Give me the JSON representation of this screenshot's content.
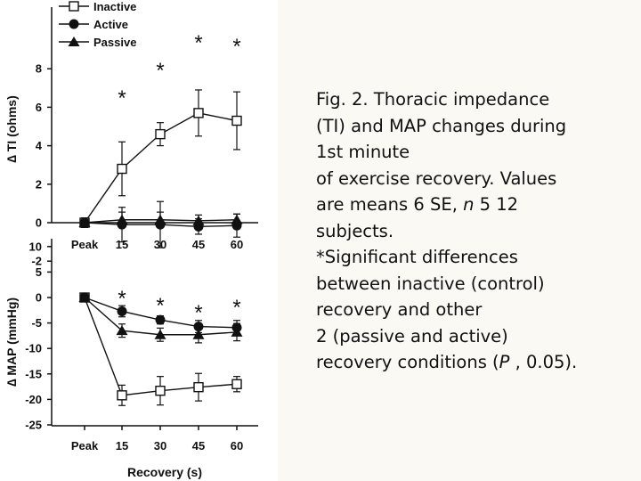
{
  "caption": {
    "lines": [
      "Fig. 2. Thoracic impedance",
      "(TI) and MAP changes during",
      "1st minute",
      "of exercise recovery. Values",
      "are means 6 SE, ",
      "subjects.",
      "*Significant differences",
      "between inactive (control)",
      "recovery and other",
      "2 (passive and active)",
      "recovery conditions ("
    ],
    "n_symbol": "n",
    "n_value": " 5 12",
    "p_symbol": "P",
    "p_value": " , 0.05)."
  },
  "chart_data": [
    {
      "type": "line",
      "categories": [
        "Peak",
        "15",
        "30",
        "45",
        "60"
      ],
      "xlabel": "",
      "ylabel": "∆ TI (ohms)",
      "ylim": [
        -2,
        8
      ],
      "yticks": [
        -2,
        0,
        2,
        4,
        6,
        8
      ],
      "legend": {
        "placement": "top-left",
        "entries": [
          "Inactive",
          "Active",
          "Passive"
        ]
      },
      "significance_marker": "*",
      "significant_categories": [
        "15",
        "30",
        "45",
        "60"
      ],
      "series": [
        {
          "name": "Inactive",
          "marker": "open-square",
          "values": [
            0,
            2.8,
            4.6,
            5.7,
            5.3
          ],
          "errors": [
            0.25,
            1.4,
            0.6,
            1.2,
            1.5
          ]
        },
        {
          "name": "Active",
          "marker": "filled-circle",
          "values": [
            0,
            -0.1,
            -0.1,
            -0.2,
            -0.15
          ],
          "errors": [
            0.15,
            0.9,
            1.2,
            0.4,
            0.6
          ]
        },
        {
          "name": "Passive",
          "marker": "filled-triangle",
          "values": [
            0,
            0.15,
            0.15,
            0.1,
            0.15
          ],
          "errors": [
            0.15,
            0.4,
            0.4,
            0.3,
            0.3
          ]
        }
      ]
    },
    {
      "type": "line",
      "categories": [
        "Peak",
        "15",
        "30",
        "45",
        "60"
      ],
      "xlabel": "Recovery (s)",
      "ylabel": "∆ MAP (mmHg)",
      "ylim": [
        -25,
        10
      ],
      "yticks": [
        -25,
        -20,
        -15,
        -10,
        -5,
        0,
        5,
        10
      ],
      "significance_marker": "*",
      "significant_categories": [
        "15",
        "30",
        "45",
        "60"
      ],
      "series": [
        {
          "name": "Inactive",
          "marker": "open-square",
          "values": [
            0,
            -19.2,
            -18.3,
            -17.6,
            -17.0
          ],
          "errors": [
            0.6,
            2.0,
            2.8,
            2.7,
            1.5
          ]
        },
        {
          "name": "Active",
          "marker": "filled-circle",
          "values": [
            0,
            -2.7,
            -4.4,
            -5.7,
            -5.9
          ],
          "errors": [
            0.6,
            1.1,
            0.8,
            1.2,
            1.4
          ]
        },
        {
          "name": "Passive",
          "marker": "filled-triangle",
          "values": [
            0,
            -6.5,
            -7.3,
            -7.3,
            -6.8
          ],
          "errors": [
            0.6,
            1.3,
            1.3,
            1.6,
            1.7
          ]
        }
      ]
    }
  ]
}
